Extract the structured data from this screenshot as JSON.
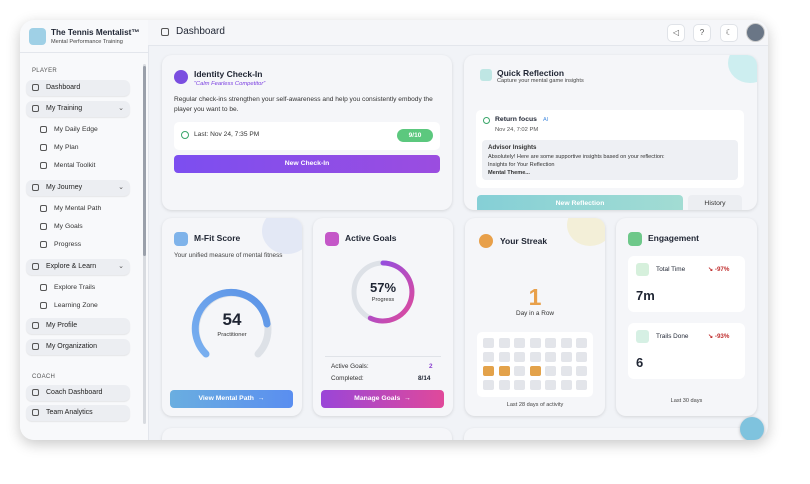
{
  "app": {
    "name": "The Tennis Mentalist™",
    "tagline": "Mental Performance Training"
  },
  "sidebar": {
    "player_label": "PLAYER",
    "items": [
      "Dashboard",
      "My Training",
      "My Daily Edge",
      "My Plan",
      "Mental Toolkit",
      "My Journey",
      "My Mental Path",
      "My Goals",
      "Progress",
      "Explore & Learn",
      "Explore Trails",
      "Learning Zone",
      "My Profile",
      "My Organization"
    ],
    "coach_label": "COACH",
    "coach_items": [
      "Coach Dashboard",
      "Team Analytics"
    ]
  },
  "header": {
    "title": "Dashboard"
  },
  "identity": {
    "title": "Identity Check-In",
    "subtitle": "“Calm Fearless Competitor”",
    "body": "Regular check-ins strengthen your self-awareness and help you consistently embody the player you want to be.",
    "last": "Last: Nov 24, 7:35 PM",
    "score": "9/10",
    "button": "New Check-In"
  },
  "reflection": {
    "title": "Quick Reflection",
    "subtitle": "Capture your mental game insights",
    "entry_title": "Return focus",
    "entry_tag": "AI",
    "entry_date": "Nov 24, 7:02 PM",
    "advisor_title": "Advisor Insights",
    "advisor_lines": [
      "Absolutely! Here are some supportive insights based on your reflection:",
      "Insights for Your Reflection",
      "Mental Theme..."
    ],
    "button": "New Reflection",
    "history": "History"
  },
  "mfit": {
    "title": "M-Fit Score",
    "description": "Your unified measure of mental fitness",
    "score": "54",
    "level": "Practitioner",
    "button": "View Mental Path"
  },
  "goals": {
    "title": "Active Goals",
    "percent": "57%",
    "percent_label": "Progress",
    "active_label": "Active Goals:",
    "active_value": "2",
    "completed_label": "Completed:",
    "completed_value": "8/14",
    "button": "Manage Goals"
  },
  "streak": {
    "title": "Your Streak",
    "days": "1",
    "days_label": "Day in a Row",
    "caption": "Last 28 days of activity"
  },
  "engagement": {
    "title": "Engagement",
    "metrics": [
      {
        "label": "Total Time",
        "change": "-97%",
        "value": "7m"
      },
      {
        "label": "Trails Done",
        "change": "-93%",
        "value": "6"
      }
    ],
    "caption": "Last 30 days"
  }
}
